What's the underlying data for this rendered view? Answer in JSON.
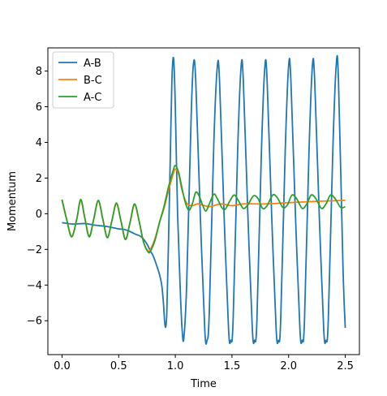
{
  "chart_data": {
    "type": "line",
    "title": "",
    "xlabel": "Time",
    "ylabel": "Momentum",
    "xlim": [
      -0.125,
      2.625
    ],
    "ylim": [
      -7.9,
      9.3
    ],
    "xticks": [
      0.0,
      0.5,
      1.0,
      1.5,
      2.0,
      2.5
    ],
    "xtick_labels": [
      "0.0",
      "0.5",
      "1.0",
      "1.5",
      "2.0",
      "2.5"
    ],
    "yticks": [
      -6,
      -4,
      -2,
      0,
      2,
      4,
      6,
      8
    ],
    "ytick_labels": [
      "−6",
      "−4",
      "−2",
      "0",
      "2",
      "4",
      "6",
      "8"
    ],
    "grid": false,
    "legend_position": "top-left",
    "series": [
      {
        "name": "A-B",
        "color": "#1f77b4",
        "points": [
          [
            0.0,
            -0.5
          ],
          [
            0.1,
            -0.58
          ],
          [
            0.2,
            -0.55
          ],
          [
            0.3,
            -0.65
          ],
          [
            0.4,
            -0.72
          ],
          [
            0.5,
            -0.85
          ],
          [
            0.55,
            -0.88
          ],
          [
            0.6,
            -1.0
          ],
          [
            0.65,
            -1.15
          ],
          [
            0.7,
            -1.3
          ],
          [
            0.75,
            -1.7
          ],
          [
            0.78,
            -2.1
          ],
          [
            0.8,
            -2.3
          ],
          [
            0.83,
            -2.8
          ],
          [
            0.86,
            -3.4
          ],
          [
            0.88,
            -4.0
          ],
          [
            0.895,
            -5.0
          ],
          [
            0.905,
            -6.0
          ],
          [
            0.915,
            -6.35
          ],
          [
            0.925,
            -5.5
          ],
          [
            0.94,
            -1.5
          ],
          [
            0.955,
            3.0
          ],
          [
            0.97,
            7.5
          ],
          [
            0.985,
            8.7
          ],
          [
            1.0,
            6.0
          ],
          [
            1.02,
            0.0
          ],
          [
            1.045,
            -4.5
          ],
          [
            1.06,
            -6.5
          ],
          [
            1.075,
            -7.0
          ],
          [
            1.1,
            -4.0
          ],
          [
            1.14,
            5.5
          ],
          [
            1.16,
            8.4
          ],
          [
            1.18,
            7.5
          ],
          [
            1.22,
            0.0
          ],
          [
            1.26,
            -6.5
          ],
          [
            1.28,
            -7.1
          ],
          [
            1.3,
            -5.5
          ],
          [
            1.34,
            4.0
          ],
          [
            1.37,
            8.2
          ],
          [
            1.39,
            7.5
          ],
          [
            1.43,
            0.0
          ],
          [
            1.47,
            -6.5
          ],
          [
            1.49,
            -7.1
          ],
          [
            1.51,
            -6.0
          ],
          [
            1.55,
            3.5
          ],
          [
            1.58,
            8.2
          ],
          [
            1.6,
            7.5
          ],
          [
            1.64,
            0.0
          ],
          [
            1.68,
            -6.5
          ],
          [
            1.7,
            -7.1
          ],
          [
            1.72,
            -6.0
          ],
          [
            1.76,
            3.5
          ],
          [
            1.79,
            8.2
          ],
          [
            1.81,
            7.5
          ],
          [
            1.85,
            0.0
          ],
          [
            1.89,
            -6.5
          ],
          [
            1.91,
            -7.1
          ],
          [
            1.93,
            -6.0
          ],
          [
            1.97,
            3.5
          ],
          [
            2.0,
            8.3
          ],
          [
            2.02,
            7.5
          ],
          [
            2.06,
            0.0
          ],
          [
            2.1,
            -6.5
          ],
          [
            2.12,
            -7.1
          ],
          [
            2.14,
            -6.0
          ],
          [
            2.18,
            3.5
          ],
          [
            2.21,
            8.3
          ],
          [
            2.23,
            7.5
          ],
          [
            2.27,
            0.0
          ],
          [
            2.31,
            -6.5
          ],
          [
            2.33,
            -7.1
          ],
          [
            2.35,
            -6.0
          ],
          [
            2.39,
            3.5
          ],
          [
            2.42,
            8.3
          ],
          [
            2.44,
            7.5
          ],
          [
            2.48,
            -3.0
          ],
          [
            2.5,
            -6.4
          ]
        ]
      },
      {
        "name": "B-C",
        "color": "#ff7f0e",
        "points": [
          [
            0.0,
            0.75
          ],
          [
            0.04,
            -0.3
          ],
          [
            0.085,
            -1.25
          ],
          [
            0.13,
            -0.3
          ],
          [
            0.165,
            0.75
          ],
          [
            0.2,
            -0.2
          ],
          [
            0.24,
            -1.25
          ],
          [
            0.28,
            -0.3
          ],
          [
            0.32,
            0.7
          ],
          [
            0.36,
            -0.3
          ],
          [
            0.4,
            -1.3
          ],
          [
            0.44,
            -0.4
          ],
          [
            0.48,
            0.55
          ],
          [
            0.52,
            -0.4
          ],
          [
            0.56,
            -1.4
          ],
          [
            0.6,
            -0.5
          ],
          [
            0.64,
            0.5
          ],
          [
            0.68,
            -0.4
          ],
          [
            0.72,
            -1.6
          ],
          [
            0.76,
            -2.1
          ],
          [
            0.78,
            -2.0
          ],
          [
            0.82,
            -1.4
          ],
          [
            0.86,
            -0.5
          ],
          [
            0.9,
            0.3
          ],
          [
            0.94,
            1.3
          ],
          [
            0.98,
            2.2
          ],
          [
            1.0,
            2.5
          ],
          [
            1.03,
            2.2
          ],
          [
            1.06,
            1.3
          ],
          [
            1.1,
            0.6
          ],
          [
            1.15,
            0.45
          ],
          [
            1.2,
            0.55
          ],
          [
            1.3,
            0.4
          ],
          [
            1.4,
            0.55
          ],
          [
            1.5,
            0.45
          ],
          [
            1.6,
            0.55
          ],
          [
            1.8,
            0.55
          ],
          [
            2.0,
            0.62
          ],
          [
            2.2,
            0.68
          ],
          [
            2.4,
            0.73
          ],
          [
            2.5,
            0.75
          ]
        ]
      },
      {
        "name": "A-C",
        "color": "#2ca02c",
        "points": [
          [
            0.0,
            0.8
          ],
          [
            0.04,
            -0.3
          ],
          [
            0.085,
            -1.3
          ],
          [
            0.13,
            -0.3
          ],
          [
            0.165,
            0.8
          ],
          [
            0.2,
            -0.2
          ],
          [
            0.24,
            -1.3
          ],
          [
            0.28,
            -0.3
          ],
          [
            0.32,
            0.75
          ],
          [
            0.36,
            -0.3
          ],
          [
            0.4,
            -1.35
          ],
          [
            0.44,
            -0.4
          ],
          [
            0.48,
            0.6
          ],
          [
            0.52,
            -0.4
          ],
          [
            0.56,
            -1.45
          ],
          [
            0.6,
            -0.5
          ],
          [
            0.64,
            0.55
          ],
          [
            0.68,
            -0.4
          ],
          [
            0.72,
            -1.6
          ],
          [
            0.76,
            -2.15
          ],
          [
            0.78,
            -2.1
          ],
          [
            0.82,
            -1.5
          ],
          [
            0.86,
            -0.5
          ],
          [
            0.9,
            0.4
          ],
          [
            0.94,
            1.5
          ],
          [
            0.98,
            2.4
          ],
          [
            1.0,
            2.7
          ],
          [
            1.03,
            2.3
          ],
          [
            1.06,
            1.4
          ],
          [
            1.09,
            0.6
          ],
          [
            1.12,
            0.2
          ],
          [
            1.15,
            0.55
          ],
          [
            1.18,
            1.2
          ],
          [
            1.21,
            1.0
          ],
          [
            1.24,
            0.5
          ],
          [
            1.27,
            0.15
          ],
          [
            1.3,
            0.55
          ],
          [
            1.34,
            1.1
          ],
          [
            1.37,
            0.85
          ],
          [
            1.41,
            0.35
          ],
          [
            1.44,
            0.25
          ],
          [
            1.48,
            0.7
          ],
          [
            1.52,
            1.05
          ],
          [
            1.56,
            0.7
          ],
          [
            1.6,
            0.3
          ],
          [
            1.64,
            0.5
          ],
          [
            1.69,
            1.0
          ],
          [
            1.73,
            0.85
          ],
          [
            1.77,
            0.3
          ],
          [
            1.81,
            0.45
          ],
          [
            1.86,
            1.05
          ],
          [
            1.9,
            0.9
          ],
          [
            1.95,
            0.35
          ],
          [
            1.99,
            0.5
          ],
          [
            2.03,
            1.05
          ],
          [
            2.07,
            0.85
          ],
          [
            2.12,
            0.3
          ],
          [
            2.16,
            0.55
          ],
          [
            2.2,
            1.05
          ],
          [
            2.24,
            0.85
          ],
          [
            2.29,
            0.3
          ],
          [
            2.33,
            0.55
          ],
          [
            2.37,
            1.05
          ],
          [
            2.41,
            0.85
          ],
          [
            2.46,
            0.35
          ],
          [
            2.5,
            0.4
          ]
        ]
      }
    ]
  }
}
